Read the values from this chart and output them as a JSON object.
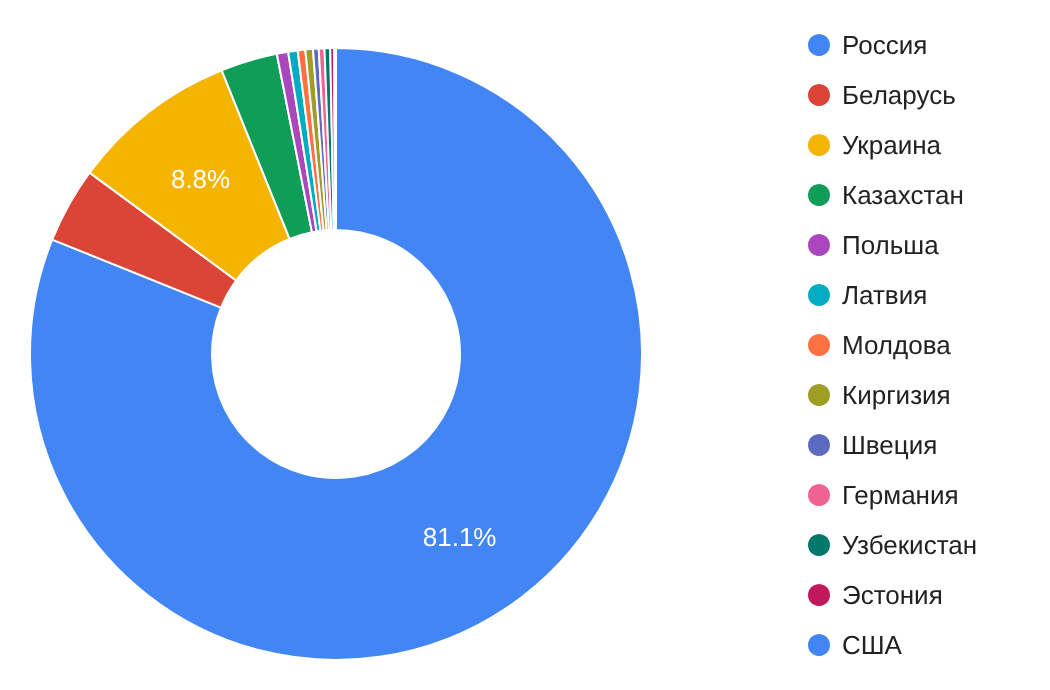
{
  "chart_data": {
    "type": "donut",
    "categories": [
      "Россия",
      "Беларусь",
      "Украина",
      "Казахстан",
      "Польша",
      "Латвия",
      "Молдова",
      "Киргизия",
      "Швеция",
      "Германия",
      "Узбекистан",
      "Эстония",
      "США"
    ],
    "values": [
      81.1,
      4.0,
      8.8,
      3.0,
      0.6,
      0.5,
      0.4,
      0.4,
      0.3,
      0.3,
      0.3,
      0.2,
      0.1
    ],
    "value_labels": [
      "81.1%",
      null,
      "8.8%",
      null,
      null,
      null,
      null,
      null,
      null,
      null,
      null,
      null,
      null
    ],
    "colors": [
      "#4285f4",
      "#db4437",
      "#f4b400",
      "#0f9d58",
      "#ab47bc",
      "#00acc1",
      "#ff7043",
      "#9e9d24",
      "#5c6bc0",
      "#f06292",
      "#00796b",
      "#c2185b",
      "#4285f4"
    ],
    "legend": "right"
  }
}
